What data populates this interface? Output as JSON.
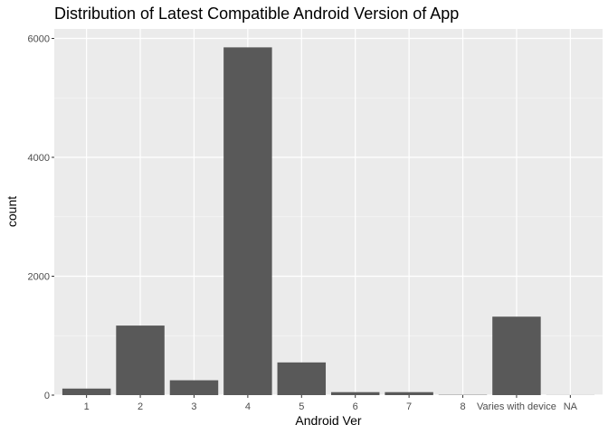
{
  "chart_data": {
    "type": "bar",
    "title": "Distribution of Latest Compatible Android Version of App",
    "xlabel": "Android Ver",
    "ylabel": "count",
    "categories": [
      "1",
      "2",
      "3",
      "4",
      "5",
      "6",
      "7",
      "8",
      "Varies with device",
      "NA"
    ],
    "values": [
      110,
      1170,
      250,
      5850,
      550,
      50,
      50,
      5,
      1320,
      2
    ],
    "ylim": [
      0,
      6160
    ],
    "yticks": [
      0,
      2000,
      4000,
      6000
    ],
    "ytick_labels": [
      "0",
      "2000",
      "4000",
      "6000"
    ],
    "grid": true,
    "legend": "none",
    "colors": {
      "bar": "#595959",
      "panel": "#ebebeb",
      "grid_major": "#ffffff",
      "grid_minor": "#f5f5f5",
      "tick_text": "#4d4d4d"
    }
  }
}
